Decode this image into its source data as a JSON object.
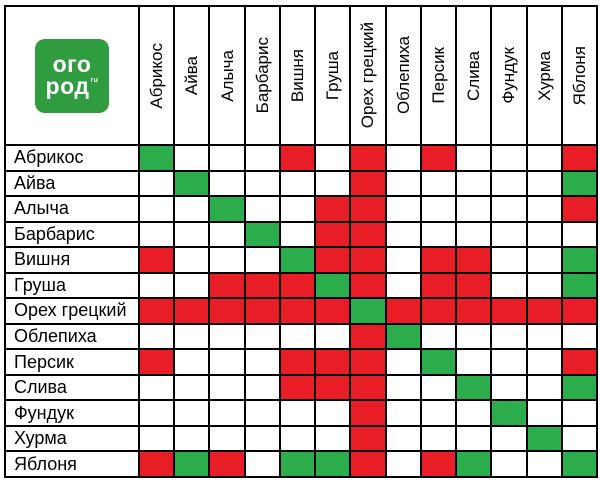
{
  "logo": {
    "line1": "ого",
    "line2": "род",
    "superscript": "ru",
    "background": "#2f9c3f",
    "text_color": "#ffffff"
  },
  "chart_data": {
    "type": "heatmap",
    "x_categories": [
      "Абрикос",
      "Айва",
      "Алыча",
      "Барбарис",
      "Вишня",
      "Груша",
      "Орех грецкий",
      "Облепиха",
      "Персик",
      "Слива",
      "Фундук",
      "Хурма",
      "Яблоня"
    ],
    "y_categories": [
      "Абрикос",
      "Айва",
      "Алыча",
      "Барбарис",
      "Вишня",
      "Груша",
      "Орех грецкий",
      "Облепиха",
      "Персик",
      "Слива",
      "Фундук",
      "Хурма",
      "Яблоня"
    ],
    "cell_colors": {
      "G": "#2bad4c",
      "R": "#e81d25",
      "": "#ffffff"
    },
    "matrix": [
      [
        "G",
        "",
        "",
        "",
        "R",
        "",
        "R",
        "",
        "R",
        "",
        "",
        "",
        "R"
      ],
      [
        "",
        "G",
        "",
        "",
        "",
        "",
        "R",
        "",
        "",
        "",
        "",
        "",
        "G"
      ],
      [
        "",
        "",
        "G",
        "",
        "",
        "R",
        "R",
        "",
        "",
        "",
        "",
        "",
        "R"
      ],
      [
        "",
        "",
        "",
        "G",
        "",
        "R",
        "R",
        "",
        "",
        "",
        "",
        "",
        ""
      ],
      [
        "R",
        "",
        "",
        "",
        "G",
        "R",
        "R",
        "",
        "R",
        "R",
        "",
        "",
        "G"
      ],
      [
        "",
        "",
        "R",
        "R",
        "R",
        "G",
        "R",
        "",
        "R",
        "R",
        "",
        "",
        "G"
      ],
      [
        "R",
        "R",
        "R",
        "R",
        "R",
        "R",
        "G",
        "R",
        "R",
        "R",
        "R",
        "R",
        "R"
      ],
      [
        "",
        "",
        "",
        "",
        "",
        "",
        "R",
        "G",
        "",
        "",
        "",
        "",
        ""
      ],
      [
        "R",
        "",
        "",
        "",
        "R",
        "R",
        "R",
        "",
        "G",
        "",
        "",
        "",
        "R"
      ],
      [
        "",
        "",
        "",
        "",
        "R",
        "R",
        "R",
        "",
        "",
        "G",
        "",
        "",
        "G"
      ],
      [
        "",
        "",
        "",
        "",
        "",
        "",
        "R",
        "",
        "",
        "",
        "G",
        "",
        ""
      ],
      [
        "",
        "",
        "",
        "",
        "",
        "",
        "R",
        "",
        "",
        "",
        "",
        "G",
        ""
      ],
      [
        "R",
        "G",
        "R",
        "",
        "G",
        "G",
        "R",
        "",
        "R",
        "G",
        "",
        "",
        "G"
      ]
    ]
  },
  "colors": {
    "grid": "#000000",
    "background": "#ffffff",
    "label_text": "#000000"
  }
}
